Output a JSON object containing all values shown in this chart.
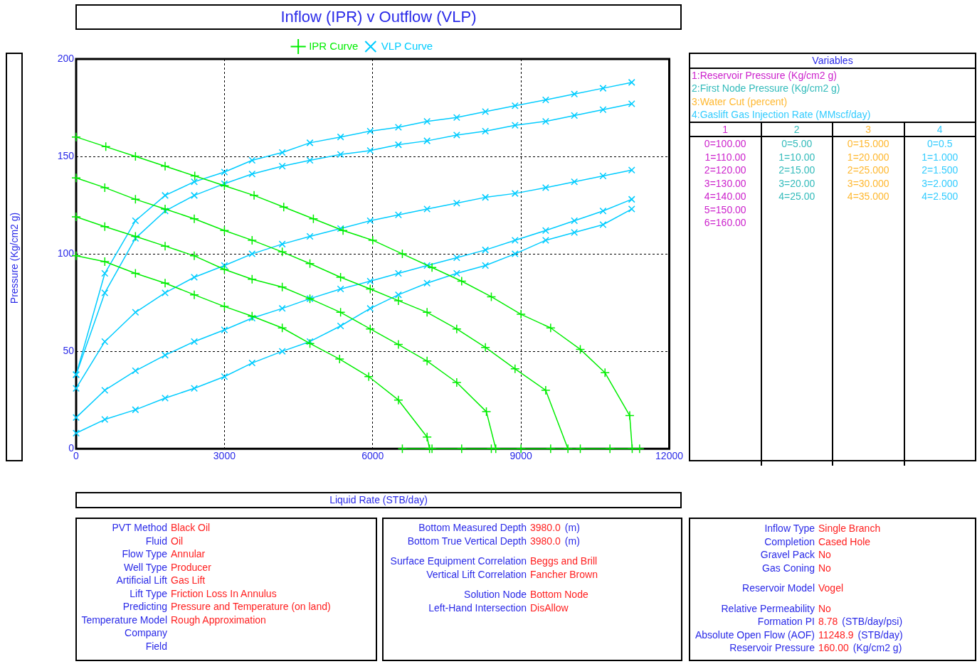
{
  "chart_data": {
    "type": "line",
    "title": "Inflow (IPR) v Outflow (VLP)",
    "xlabel": "Liquid Rate  (STB/day)",
    "ylabel": "Pressure  (Kg/cm2 g)",
    "xlim": [
      0,
      12000
    ],
    "xticks": [
      0,
      3000,
      6000,
      9000,
      12000
    ],
    "ylim": [
      0,
      200
    ],
    "yticks": [
      0,
      50,
      100,
      150,
      200
    ],
    "grid": true,
    "legend": "top",
    "line_style": "solid",
    "series": [
      {
        "name": "IPR Curve",
        "color": "#00ee00",
        "marker": "cross",
        "x": [
          0,
          600,
          1200,
          1800,
          2400,
          3000,
          3600,
          4200,
          4800,
          5400,
          6000,
          6600,
          7200,
          7800,
          8400,
          9000,
          9600,
          10200,
          10700,
          11200,
          11250
        ],
        "values": [
          160,
          155,
          150,
          145,
          140,
          135,
          130,
          124,
          118,
          112,
          107,
          100,
          93,
          86,
          78,
          69,
          62,
          51,
          39,
          17,
          0
        ]
      },
      {
        "color": "#00ee00",
        "marker": "cross",
        "x": [
          0,
          580,
          1200,
          1800,
          2390,
          3000,
          3560,
          4170,
          4730,
          5350,
          5950,
          6520,
          7100,
          7700,
          8280,
          8880,
          9500,
          9950
        ],
        "values": [
          139,
          134,
          128,
          123,
          118,
          112,
          107,
          101,
          95,
          88,
          82,
          76,
          70,
          61.5,
          52,
          41,
          30,
          0
        ]
      },
      {
        "color": "#00ee00",
        "marker": "cross",
        "x": [
          0,
          580,
          1200,
          1800,
          2390,
          3000,
          3560,
          4170,
          4730,
          5350,
          5950,
          6520,
          7100,
          7700,
          8300,
          8490
        ],
        "values": [
          119,
          114,
          109,
          104,
          99,
          92,
          87,
          83,
          77,
          70,
          61.5,
          53.5,
          45,
          34,
          19,
          0
        ]
      },
      {
        "color": "#00ee00",
        "marker": "cross",
        "x": [
          0,
          580,
          1200,
          1800,
          2390,
          3000,
          3560,
          4170,
          4730,
          5330,
          5920,
          6520,
          7100,
          7150
        ],
        "values": [
          99,
          96,
          90,
          85,
          79,
          73,
          68,
          62,
          54,
          46,
          37,
          25,
          6,
          0
        ]
      },
      {
        "color": "#00ee00",
        "marker": "cross",
        "x": [
          6600,
          7200,
          7800,
          8400,
          9000,
          9600,
          10200,
          10800,
          11400
        ],
        "values": [
          0,
          0,
          0,
          0,
          0,
          0,
          0,
          0,
          0
        ]
      },
      {
        "name": "VLP Curve",
        "color": "#00ccff",
        "marker": "x",
        "x": [
          0,
          580,
          1200,
          1800,
          2390,
          3000,
          3560,
          4170,
          4730,
          5350,
          5950,
          6520,
          7100,
          7700,
          8280,
          8880,
          9500,
          10080,
          10660,
          11240
        ],
        "values": [
          38,
          90,
          117,
          130,
          137,
          142,
          148,
          152,
          157,
          160,
          163,
          165,
          168,
          170,
          173,
          176,
          179,
          182,
          185,
          188
        ]
      },
      {
        "color": "#00ccff",
        "marker": "x",
        "x": [
          0,
          580,
          1200,
          1800,
          2390,
          3000,
          3560,
          4170,
          4730,
          5350,
          5950,
          6520,
          7100,
          7700,
          8280,
          8880,
          9500,
          10080,
          10660,
          11240
        ],
        "values": [
          38,
          80,
          108,
          122,
          130,
          136,
          141,
          145,
          148,
          151,
          153,
          156,
          158,
          161,
          163,
          166,
          168,
          171,
          174,
          177
        ]
      },
      {
        "color": "#00ccff",
        "marker": "x",
        "x": [
          0,
          580,
          1200,
          1800,
          2390,
          3000,
          3560,
          4170,
          4730,
          5350,
          5950,
          6520,
          7100,
          7700,
          8280,
          8880,
          9500,
          10080,
          10660,
          11240
        ],
        "values": [
          31,
          55,
          70,
          80,
          88,
          94,
          100,
          105,
          109,
          113,
          117,
          120,
          123,
          126,
          129,
          131,
          134,
          137,
          140,
          143
        ]
      },
      {
        "color": "#00ccff",
        "marker": "x",
        "x": [
          0,
          580,
          1200,
          1800,
          2390,
          3000,
          3560,
          4170,
          4730,
          5350,
          5950,
          6520,
          7100,
          7700,
          8280,
          8880,
          9500,
          10080,
          10660,
          11240
        ],
        "values": [
          16,
          30,
          40,
          48,
          55,
          61,
          67,
          72,
          77,
          82,
          86,
          90,
          94,
          98,
          102,
          107,
          112,
          117,
          122,
          128
        ]
      },
      {
        "color": "#00ccff",
        "marker": "x",
        "x": [
          0,
          580,
          1200,
          1800,
          2390,
          3000,
          3560,
          4170,
          4730,
          5350,
          5950,
          6520,
          7100,
          7700,
          8280,
          8880,
          9500,
          10080,
          10660,
          11240
        ],
        "values": [
          8,
          15,
          20,
          26,
          31,
          37,
          44,
          50,
          55,
          63,
          72,
          79,
          85,
          90,
          94,
          100,
          107,
          111,
          115,
          123
        ]
      }
    ],
    "annotations": [
      "Variables",
      "1:Reservoir Pressure (Kg/cm2 g)",
      "2:First Node Pressure (Kg/cm2 g)",
      "3:Water Cut (percent)",
      "4:Gaslift Gas Injection Rate (MMscf/day)",
      "1",
      "2",
      "3",
      "4",
      "0=100.00",
      "1=110.00",
      "2=120.00",
      "3=130.00",
      "4=140.00",
      "5=150.00",
      "6=160.00",
      "0=5.00",
      "1=10.00",
      "2=15.00",
      "3=20.00",
      "4=25.00",
      "0=15.000",
      "1=20.000",
      "2=25.000",
      "3=30.000",
      "4=35.000",
      "0=0.5",
      "1=1.000",
      "2=1.500",
      "3=2.000",
      "4=2.500",
      "PVT Method",
      "Black Oil",
      "Fluid",
      "Oil",
      "Flow Type",
      "Annular",
      "Well Type",
      "Producer",
      "Artificial Lift",
      "Gas Lift",
      "Lift Type",
      "Friction Loss In Annulus",
      "Predicting",
      "Pressure and Temperature (on land)",
      "Temperature Model",
      "Rough Approximation",
      "Company",
      "Field",
      "Bottom Measured Depth",
      "3980.0",
      "(m)",
      "Bottom True Vertical Depth",
      "3980.0",
      "(m)",
      "Surface Equipment Correlation",
      "Beggs and Brill",
      "Vertical Lift Correlation",
      "Fancher Brown",
      "Solution Node",
      "Bottom Node",
      "Left-Hand Intersection",
      "DisAllow",
      "Inflow Type",
      "Single Branch",
      "Completion",
      "Cased Hole",
      "Gravel Pack",
      "No",
      "Gas Coning",
      "No",
      "Reservoir Model",
      "Vogel",
      "Relative Permeability",
      "No",
      "Formation PI",
      "8.78",
      "(STB/day/psi)",
      "Absolute Open Flow (AOF)",
      "11248.9",
      "(STB/day)",
      "Reservoir Pressure",
      "160.00",
      "(Kg/cm2 g)"
    ]
  }
}
